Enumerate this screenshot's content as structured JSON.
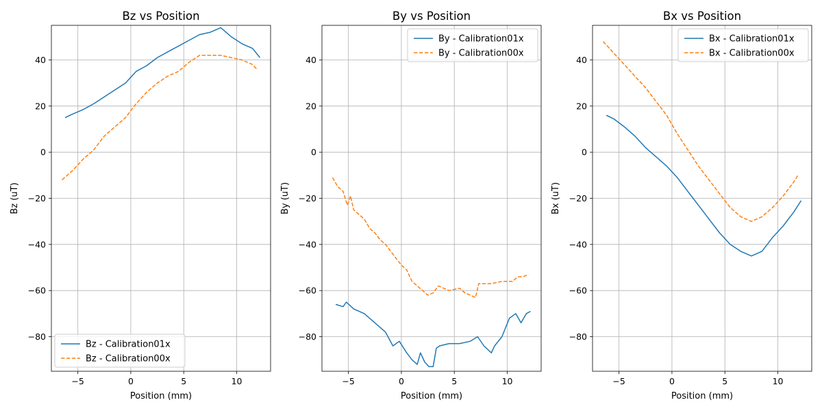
{
  "chart_data": [
    {
      "type": "line",
      "title": "Bz vs Position",
      "xlabel": "Position (mm)",
      "ylabel": "Bz (uT)",
      "xlim": [
        -7.5,
        13.2
      ],
      "ylim": [
        -95,
        55
      ],
      "xticks": [
        -5,
        0,
        5,
        10
      ],
      "yticks": [
        -80,
        -60,
        -40,
        -20,
        0,
        20,
        40
      ],
      "xtick_labels": [
        "−5",
        "0",
        "5",
        "10"
      ],
      "ytick_labels": [
        "−80",
        "−60",
        "−40",
        "−20",
        "0",
        "20",
        "40"
      ],
      "grid": true,
      "legend_position": "lower-left",
      "series": [
        {
          "name": "Bz - Calibration01x",
          "color": "#1f77b4",
          "style": "solid",
          "x": [
            -6.2,
            -5.5,
            -4.5,
            -3.5,
            -2.5,
            -1.5,
            -0.5,
            0.5,
            1.5,
            2.5,
            3.5,
            4.5,
            5.5,
            6.5,
            7.5,
            8.5,
            9.5,
            10.5,
            11.5,
            12.2
          ],
          "y": [
            15,
            16.5,
            18.5,
            21,
            24,
            27,
            30,
            35,
            37.5,
            41,
            43.5,
            46,
            48.5,
            51,
            52,
            54,
            50,
            47,
            45,
            41
          ]
        },
        {
          "name": "Bz - Calibration00x",
          "color": "#ff7f0e",
          "style": "dashed",
          "x": [
            -6.5,
            -5.5,
            -4.5,
            -3.5,
            -2.5,
            -1.5,
            -0.5,
            0.5,
            1.5,
            2.5,
            3.5,
            4.5,
            5.5,
            6.5,
            7.5,
            8.5,
            9.5,
            10.5,
            11.5,
            11.9
          ],
          "y": [
            -12,
            -8,
            -3,
            1,
            7,
            11,
            15,
            21,
            26,
            30,
            33,
            35,
            39,
            42,
            42,
            42,
            41,
            40,
            38,
            36
          ]
        }
      ]
    },
    {
      "type": "line",
      "title": "By vs Position",
      "xlabel": "Position (mm)",
      "ylabel": "By (uT)",
      "xlim": [
        -7.5,
        13.2
      ],
      "ylim": [
        -95,
        55
      ],
      "xticks": [
        -5,
        0,
        5,
        10
      ],
      "yticks": [
        -80,
        -60,
        -40,
        -20,
        0,
        20,
        40
      ],
      "xtick_labels": [
        "−5",
        "0",
        "5",
        "10"
      ],
      "ytick_labels": [
        "−80",
        "−60",
        "−40",
        "−20",
        "0",
        "20",
        "40"
      ],
      "grid": true,
      "legend_position": "upper-right",
      "series": [
        {
          "name": "By - Calibration01x",
          "color": "#1f77b4",
          "style": "solid",
          "x": [
            -6.2,
            -5.5,
            -5.2,
            -4.5,
            -3.5,
            -2.5,
            -1.5,
            -0.8,
            -0.2,
            0.5,
            1.0,
            1.5,
            1.8,
            2.2,
            2.6,
            3.0,
            3.3,
            3.6,
            4.5,
            5.5,
            6.5,
            7.2,
            7.8,
            8.5,
            8.8,
            9.5,
            10.2,
            10.8,
            11.3,
            11.8,
            12.2
          ],
          "y": [
            -66,
            -67,
            -65,
            -68,
            -70,
            -74,
            -78,
            -84,
            -82,
            -87,
            -90,
            -92,
            -87,
            -91,
            -93,
            -93,
            -85,
            -84,
            -83,
            -83,
            -82,
            -80,
            -84,
            -87,
            -84,
            -80,
            -72,
            -70,
            -74,
            -70,
            -69
          ]
        },
        {
          "name": "By - Calibration00x",
          "color": "#ff7f0e",
          "style": "dashed",
          "x": [
            -6.5,
            -6.0,
            -5.5,
            -5.1,
            -4.8,
            -4.5,
            -4.0,
            -3.5,
            -3.0,
            -2.5,
            -2.0,
            -1.5,
            -1.0,
            -0.5,
            0.0,
            0.5,
            1.0,
            1.5,
            2.0,
            2.5,
            3.0,
            3.5,
            4.5,
            5.5,
            6.0,
            6.5,
            7.0,
            7.3,
            7.8,
            8.5,
            9.5,
            10.5,
            11.0,
            11.5,
            12.0
          ],
          "y": [
            -11,
            -15,
            -17,
            -23,
            -19,
            -25,
            -27,
            -29,
            -33,
            -35,
            -38,
            -40,
            -43,
            -46,
            -49,
            -51,
            -56,
            -58,
            -60,
            -62,
            -61,
            -58,
            -60,
            -59,
            -61,
            -62,
            -63,
            -57,
            -57,
            -57,
            -56,
            -56,
            -54,
            -54,
            -53
          ]
        }
      ]
    },
    {
      "type": "line",
      "title": "Bx vs Position",
      "xlabel": "Position (mm)",
      "ylabel": "Bx (uT)",
      "xlim": [
        -7.5,
        13.2
      ],
      "ylim": [
        -95,
        55
      ],
      "xticks": [
        -5,
        0,
        5,
        10
      ],
      "yticks": [
        -80,
        -60,
        -40,
        -20,
        0,
        20,
        40
      ],
      "xtick_labels": [
        "−5",
        "0",
        "5",
        "10"
      ],
      "ytick_labels": [
        "−80",
        "−60",
        "−40",
        "−20",
        "0",
        "20",
        "40"
      ],
      "grid": true,
      "legend_position": "upper-right",
      "series": [
        {
          "name": "Bx - Calibration01x",
          "color": "#1f77b4",
          "style": "solid",
          "x": [
            -6.2,
            -5.5,
            -4.5,
            -3.5,
            -2.5,
            -1.5,
            -0.5,
            0.5,
            1.5,
            2.5,
            3.5,
            4.5,
            5.5,
            6.5,
            7.5,
            8.5,
            9.5,
            10.5,
            11.5,
            12.2
          ],
          "y": [
            16,
            14.5,
            11,
            7,
            2,
            -2,
            -6,
            -11,
            -17,
            -23,
            -29,
            -35,
            -40,
            -43,
            -45,
            -43,
            -37,
            -32,
            -26,
            -21
          ]
        },
        {
          "name": "Bx - Calibration00x",
          "color": "#ff7f0e",
          "style": "dashed",
          "x": [
            -6.5,
            -5.5,
            -4.5,
            -3.5,
            -2.5,
            -1.5,
            -0.5,
            0.5,
            1.5,
            2.5,
            3.5,
            4.5,
            5.5,
            6.5,
            7.5,
            8.5,
            9.5,
            10.5,
            11.5,
            11.9
          ],
          "y": [
            48,
            43,
            38,
            33,
            28,
            22,
            16,
            8,
            1,
            -6,
            -12,
            -18,
            -24,
            -28,
            -30,
            -28,
            -24,
            -19,
            -13,
            -10
          ]
        }
      ]
    }
  ]
}
